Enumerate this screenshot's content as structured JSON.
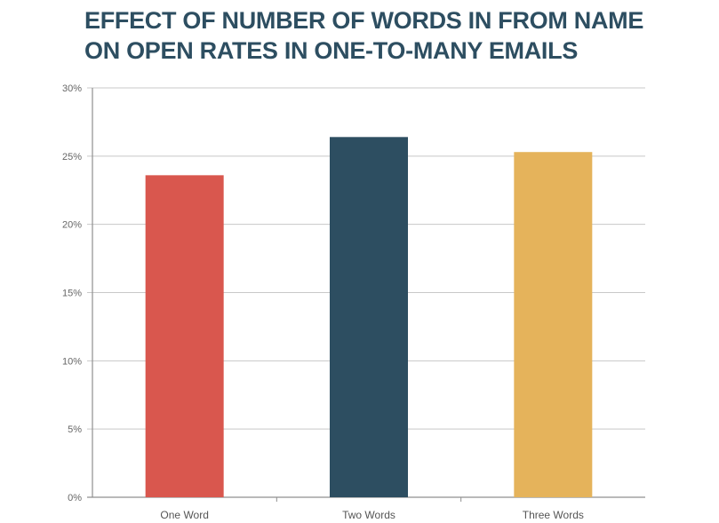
{
  "chart_data": {
    "type": "bar",
    "title_lines": [
      "EFFECT OF NUMBER OF WORDS IN FROM NAME",
      "ON OPEN RATES IN ONE-TO-MANY EMAILS"
    ],
    "categories": [
      "One Word",
      "Two Words",
      "Three Words"
    ],
    "values": [
      23.6,
      26.4,
      25.3
    ],
    "colors": [
      "#d9574e",
      "#2d4e61",
      "#e5b35b"
    ],
    "ylim": [
      0,
      30
    ],
    "yticks": [
      0,
      5,
      10,
      15,
      20,
      25,
      30
    ],
    "ytick_labels": [
      "0%",
      "5%",
      "10%",
      "15%",
      "20%",
      "25%",
      "30%"
    ],
    "grid": true,
    "legend": "none"
  }
}
